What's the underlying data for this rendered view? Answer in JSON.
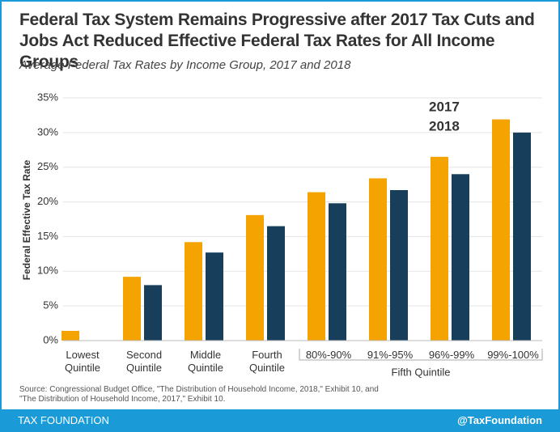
{
  "chart_data": {
    "type": "bar",
    "title": "Federal Tax System Remains Progressive after 2017 Tax Cuts and Jobs Act Reduced Effective Federal Tax Rates for All Income Groups",
    "subtitle": "Average Federal Tax Rates by Income Group, 2017 and 2018",
    "y_label": "Federal Effective Tax Rate",
    "categories": [
      "Lowest Quintile",
      "Second Quintile",
      "Middle Quintile",
      "Fourth Quintile",
      "80%-90%",
      "91%-95%",
      "96%-99%",
      "99%-100%"
    ],
    "groups": [
      {
        "label": "Fifth Quintile",
        "members": [
          "80%-90%",
          "91%-95%",
          "96%-99%",
          "99%-100%"
        ]
      }
    ],
    "series": [
      {
        "name": "2017",
        "color": "#f5a300",
        "values": [
          1.4,
          9.2,
          14.2,
          18.1,
          21.4,
          23.4,
          26.5,
          31.9
        ]
      },
      {
        "name": "2018",
        "color": "#173f5c",
        "values": [
          0,
          8.0,
          12.7,
          16.5,
          19.8,
          21.7,
          24.0,
          30.0
        ]
      }
    ],
    "ylim": [
      0,
      35
    ],
    "yticks": [
      {
        "value": 0,
        "label": "0%"
      },
      {
        "value": 5,
        "label": "5%"
      },
      {
        "value": 10,
        "label": "10%"
      },
      {
        "value": 15,
        "label": "15%"
      },
      {
        "value": 20,
        "label": "20%"
      },
      {
        "value": 25,
        "label": "25%"
      },
      {
        "value": 30,
        "label": "30%"
      },
      {
        "value": 35,
        "label": "35%"
      }
    ],
    "grid": true,
    "legend_position": "top-right",
    "source": [
      "Source: Congressional Budget Office, \"The Distribution of Household Income, 2018,\" Exhibit 10, and",
      "\"The Distribution of Household Income, 2017,\" Exhibit 10."
    ],
    "footer_left": "TAX FOUNDATION",
    "footer_right": "@TaxFoundation"
  }
}
